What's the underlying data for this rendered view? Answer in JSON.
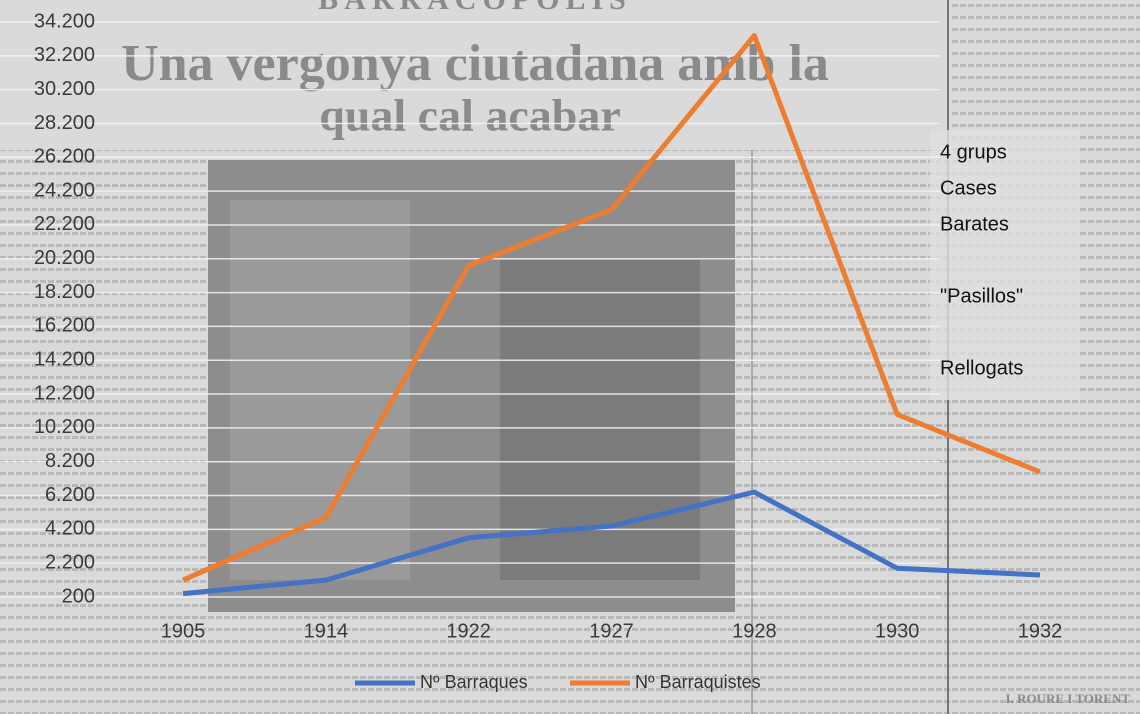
{
  "background": {
    "masthead": "BARRACOPOLIS",
    "headline": [
      "Una vergonya ciutadana amb la",
      "qual cal acabar"
    ],
    "signature": "I. ROURE I TORENT"
  },
  "chart_data": {
    "type": "line",
    "categories": [
      "1905",
      "1914",
      "1922",
      "1927",
      "1928",
      "1930",
      "1932"
    ],
    "series": [
      {
        "name": "Nº Barraques",
        "color": "#4472c4",
        "values": [
          400,
          1200,
          3700,
          4400,
          6400,
          1900,
          1500
        ]
      },
      {
        "name": "Nº Barraquistes",
        "color": "#ed7d31",
        "values": [
          1200,
          4900,
          19800,
          23100,
          33400,
          11000,
          7600
        ]
      }
    ],
    "ylim": [
      200,
      34200
    ],
    "yticks": [
      200,
      {
        "value": 2200,
        "label": "2.200"
      },
      {
        "value": 4200,
        "label": "4.200"
      },
      {
        "value": 6200,
        "label": "6.200"
      },
      {
        "value": 8200,
        "label": "8.200"
      },
      {
        "value": 10200,
        "label": "10.200"
      },
      {
        "value": 12200,
        "label": "12.200"
      },
      {
        "value": 14200,
        "label": "14.200"
      },
      {
        "value": 16200,
        "label": "16.200"
      },
      {
        "value": 18200,
        "label": "18.200"
      },
      {
        "value": 20200,
        "label": "20.200"
      },
      {
        "value": 22200,
        "label": "22.200"
      },
      {
        "value": 24200,
        "label": "24.200"
      },
      {
        "value": 26200,
        "label": "26.200"
      },
      {
        "value": 28200,
        "label": "28.200"
      },
      {
        "value": 30200,
        "label": "30.200"
      },
      {
        "value": 32200,
        "label": "32.200"
      },
      {
        "value": 34200,
        "label": "34.200"
      }
    ],
    "grid": true,
    "legend": "bottom",
    "annotations": [
      "4 grups",
      "Cases",
      "Barates",
      "\"Pasillos\"",
      "Rellogats"
    ]
  }
}
